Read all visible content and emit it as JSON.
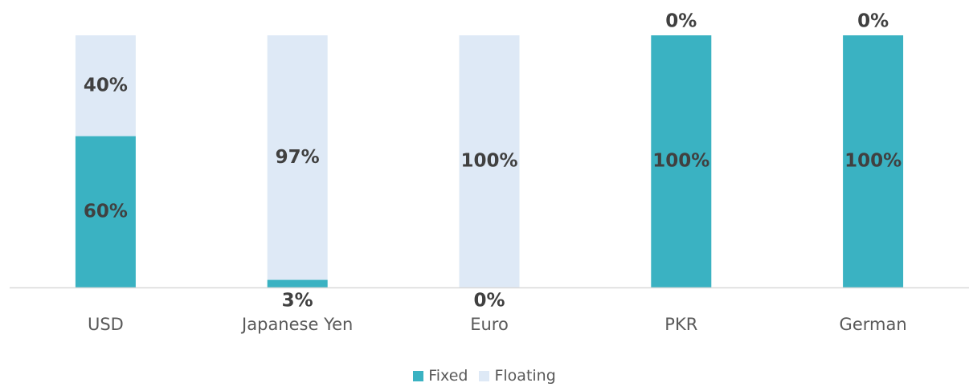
{
  "chart_data": {
    "type": "bar",
    "stacked": true,
    "percent_stacked": true,
    "categories": [
      "USD",
      "Japanese Yen",
      "Euro",
      "PKR",
      "German"
    ],
    "series": [
      {
        "name": "Fixed",
        "values": [
          60,
          3,
          0,
          100,
          100
        ],
        "labels": [
          "60%",
          "3%",
          "0%",
          "100%",
          "100%"
        ]
      },
      {
        "name": "Floating",
        "values": [
          40,
          97,
          100,
          0,
          0
        ],
        "labels": [
          "40%",
          "97%",
          "100%",
          "0%",
          "0%"
        ]
      }
    ],
    "ylim": [
      0,
      100
    ],
    "grid": false,
    "legend_position": "bottom",
    "colors": {
      "Fixed": "#3AB2C2",
      "Floating": "#DEE9F6",
      "axis": "#D9D9D9",
      "label_dark": "#404040",
      "category_text": "#595959"
    }
  }
}
